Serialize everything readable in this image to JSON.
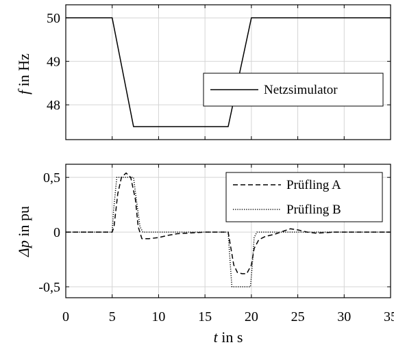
{
  "chart_data": [
    {
      "type": "line",
      "title": "",
      "ylabel_var": "f",
      "ylabel_unit": " in Hz",
      "xlim": [
        0,
        35
      ],
      "ylim": [
        47.2,
        50.3
      ],
      "yticks": [
        48,
        49,
        50
      ],
      "ytick_labels": [
        "48",
        "49",
        "50"
      ],
      "xticks": [
        0,
        5,
        10,
        15,
        20,
        25,
        30,
        35
      ],
      "grid": true,
      "legend": "right",
      "series": [
        {
          "name": "Netzsimulator",
          "style": "solid",
          "x": [
            0,
            5,
            7.3,
            17.5,
            20,
            35
          ],
          "y": [
            50,
            50,
            47.5,
            47.5,
            50,
            50
          ]
        }
      ]
    },
    {
      "type": "line",
      "title": "",
      "ylabel_var": "Δp",
      "ylabel_unit": " in pu",
      "xlabel_var": "t",
      "xlabel_unit": " in s",
      "xlim": [
        0,
        35
      ],
      "ylim": [
        -0.6,
        0.62
      ],
      "yticks": [
        -0.5,
        0,
        0.5
      ],
      "ytick_labels": [
        "-0,5",
        "0",
        "0,5"
      ],
      "xticks": [
        0,
        5,
        10,
        15,
        20,
        25,
        30,
        35
      ],
      "xtick_labels": [
        "0",
        "5",
        "10",
        "15",
        "20",
        "25",
        "30",
        "35"
      ],
      "grid": true,
      "legend": "top-right",
      "series": [
        {
          "name": "Prüfling A",
          "style": "dashed",
          "x": [
            0,
            5,
            5.2,
            5.6,
            6.0,
            6.5,
            7.0,
            7.5,
            7.8,
            8.2,
            9.0,
            10,
            11,
            12,
            13,
            14,
            15,
            16,
            17,
            17.5,
            17.7,
            18.1,
            18.5,
            19,
            19.5,
            20,
            20.3,
            20.8,
            21.5,
            22.5,
            23.5,
            24.2,
            25,
            26,
            27,
            28,
            29,
            30,
            35
          ],
          "y": [
            0,
            0,
            0.05,
            0.35,
            0.5,
            0.54,
            0.5,
            0.3,
            0.05,
            -0.06,
            -0.06,
            -0.05,
            -0.03,
            -0.015,
            -0.01,
            -0.005,
            0,
            0,
            0,
            0,
            -0.1,
            -0.3,
            -0.37,
            -0.38,
            -0.38,
            -0.3,
            -0.15,
            -0.07,
            -0.04,
            -0.02,
            0.01,
            0.03,
            0.02,
            0,
            -0.01,
            -0.005,
            0,
            0,
            0
          ]
        },
        {
          "name": "Prüfling B",
          "style": "dotted",
          "x": [
            0,
            5,
            5.15,
            5.5,
            7.3,
            7.6,
            8.0,
            8.3,
            17.5,
            17.65,
            17.9,
            19.9,
            20.1,
            20.3,
            20.6,
            35
          ],
          "y": [
            0,
            0,
            0.2,
            0.5,
            0.5,
            0.3,
            0.05,
            0,
            0,
            -0.2,
            -0.5,
            -0.5,
            -0.3,
            -0.05,
            0,
            0
          ]
        }
      ]
    }
  ]
}
